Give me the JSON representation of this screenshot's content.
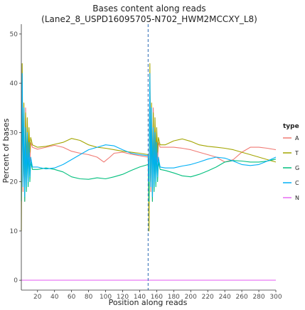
{
  "chart_data": {
    "type": "line",
    "title": "Bases content along reads",
    "subtitle": "(Lane2_8_USPD16095705-N702_HWM2MCCXY_L8)",
    "xlabel": "Position along reads",
    "ylabel": "Percent of bases",
    "xlim": [
      1,
      300
    ],
    "ylim": [
      -2,
      52
    ],
    "xticks": [
      20,
      40,
      60,
      80,
      100,
      120,
      140,
      160,
      180,
      200,
      220,
      240,
      260,
      280,
      300
    ],
    "yticks": [
      0,
      10,
      20,
      30,
      40,
      50
    ],
    "grid": false,
    "legend": {
      "title": "type",
      "position": "right"
    },
    "vline": {
      "x": 150,
      "color": "#4a7fc0",
      "dashed": true
    },
    "series": [
      {
        "name": "A",
        "color": "#f07a74",
        "points": [
          [
            1,
            22
          ],
          [
            2,
            38
          ],
          [
            3,
            18
          ],
          [
            4,
            33
          ],
          [
            5,
            16
          ],
          [
            6,
            35
          ],
          [
            7,
            20
          ],
          [
            8,
            31
          ],
          [
            9,
            22
          ],
          [
            10,
            30
          ],
          [
            11,
            24
          ],
          [
            12,
            28
          ],
          [
            14,
            27
          ],
          [
            20,
            26.6
          ],
          [
            30,
            27
          ],
          [
            40,
            27.4
          ],
          [
            50,
            27
          ],
          [
            60,
            26.2
          ],
          [
            70,
            25.8
          ],
          [
            80,
            25.5
          ],
          [
            90,
            25
          ],
          [
            98,
            24
          ],
          [
            105,
            25
          ],
          [
            110,
            25.8
          ],
          [
            120,
            26
          ],
          [
            130,
            25.6
          ],
          [
            140,
            25.3
          ],
          [
            150,
            25
          ],
          [
            151,
            22
          ],
          [
            152,
            38
          ],
          [
            153,
            18
          ],
          [
            154,
            33
          ],
          [
            155,
            16
          ],
          [
            156,
            35
          ],
          [
            157,
            20
          ],
          [
            158,
            31
          ],
          [
            159,
            22
          ],
          [
            160,
            30
          ],
          [
            161,
            24
          ],
          [
            162,
            28
          ],
          [
            164,
            27
          ],
          [
            170,
            27
          ],
          [
            180,
            27
          ],
          [
            190,
            26.8
          ],
          [
            200,
            26.5
          ],
          [
            210,
            26
          ],
          [
            220,
            25.5
          ],
          [
            230,
            25
          ],
          [
            240,
            24
          ],
          [
            250,
            24.5
          ],
          [
            260,
            26
          ],
          [
            270,
            27
          ],
          [
            280,
            27
          ],
          [
            290,
            26.8
          ],
          [
            300,
            26.5
          ]
        ]
      },
      {
        "name": "T",
        "color": "#a3a500",
        "points": [
          [
            1,
            10
          ],
          [
            2,
            44
          ],
          [
            3,
            20
          ],
          [
            4,
            36
          ],
          [
            5,
            18
          ],
          [
            6,
            34
          ],
          [
            7,
            22
          ],
          [
            8,
            33
          ],
          [
            9,
            25
          ],
          [
            10,
            31
          ],
          [
            11,
            26
          ],
          [
            12,
            29
          ],
          [
            14,
            27.5
          ],
          [
            20,
            27
          ],
          [
            30,
            27.2
          ],
          [
            40,
            27.6
          ],
          [
            50,
            28
          ],
          [
            60,
            28.8
          ],
          [
            70,
            28.4
          ],
          [
            80,
            27.5
          ],
          [
            90,
            27
          ],
          [
            100,
            26.8
          ],
          [
            110,
            26.5
          ],
          [
            120,
            26.2
          ],
          [
            130,
            26
          ],
          [
            140,
            25.8
          ],
          [
            150,
            25.5
          ],
          [
            151,
            10
          ],
          [
            152,
            44
          ],
          [
            153,
            20
          ],
          [
            154,
            36
          ],
          [
            155,
            18
          ],
          [
            156,
            34
          ],
          [
            157,
            22
          ],
          [
            158,
            33
          ],
          [
            159,
            25
          ],
          [
            160,
            31
          ],
          [
            161,
            26
          ],
          [
            162,
            29
          ],
          [
            164,
            27.5
          ],
          [
            170,
            27.5
          ],
          [
            180,
            28.3
          ],
          [
            190,
            28.7
          ],
          [
            200,
            28.2
          ],
          [
            210,
            27.5
          ],
          [
            220,
            27.2
          ],
          [
            230,
            27
          ],
          [
            240,
            26.8
          ],
          [
            250,
            26.5
          ],
          [
            260,
            26
          ],
          [
            270,
            25.5
          ],
          [
            280,
            25
          ],
          [
            290,
            24.5
          ],
          [
            300,
            24
          ]
        ]
      },
      {
        "name": "G",
        "color": "#00bf7d",
        "points": [
          [
            1,
            16
          ],
          [
            2,
            40
          ],
          [
            3,
            20
          ],
          [
            4,
            32
          ],
          [
            5,
            16
          ],
          [
            6,
            30
          ],
          [
            7,
            18
          ],
          [
            8,
            28
          ],
          [
            9,
            19
          ],
          [
            10,
            27
          ],
          [
            11,
            20
          ],
          [
            12,
            24
          ],
          [
            14,
            22.5
          ],
          [
            20,
            22.5
          ],
          [
            30,
            22.8
          ],
          [
            40,
            22.5
          ],
          [
            50,
            22
          ],
          [
            60,
            21
          ],
          [
            70,
            20.6
          ],
          [
            80,
            20.5
          ],
          [
            90,
            20.8
          ],
          [
            100,
            20.6
          ],
          [
            110,
            21
          ],
          [
            120,
            21.5
          ],
          [
            130,
            22.3
          ],
          [
            140,
            23
          ],
          [
            150,
            23.5
          ],
          [
            151,
            16
          ],
          [
            152,
            40
          ],
          [
            153,
            20
          ],
          [
            154,
            32
          ],
          [
            155,
            16
          ],
          [
            156,
            30
          ],
          [
            157,
            18
          ],
          [
            158,
            28
          ],
          [
            159,
            19
          ],
          [
            160,
            27
          ],
          [
            161,
            20
          ],
          [
            162,
            24
          ],
          [
            164,
            22.5
          ],
          [
            170,
            22.3
          ],
          [
            180,
            21.8
          ],
          [
            190,
            21.2
          ],
          [
            200,
            21
          ],
          [
            210,
            21.5
          ],
          [
            220,
            22.2
          ],
          [
            230,
            23
          ],
          [
            240,
            24
          ],
          [
            250,
            24.3
          ],
          [
            260,
            24.2
          ],
          [
            270,
            24
          ],
          [
            280,
            24
          ],
          [
            290,
            24.2
          ],
          [
            300,
            24.6
          ]
        ]
      },
      {
        "name": "C",
        "color": "#00b0f6",
        "points": [
          [
            1,
            20
          ],
          [
            2,
            42
          ],
          [
            3,
            19
          ],
          [
            4,
            35
          ],
          [
            5,
            17
          ],
          [
            6,
            31
          ],
          [
            7,
            19
          ],
          [
            8,
            30
          ],
          [
            9,
            20
          ],
          [
            10,
            28
          ],
          [
            11,
            21
          ],
          [
            12,
            25
          ],
          [
            14,
            23
          ],
          [
            20,
            23
          ],
          [
            30,
            22.6
          ],
          [
            40,
            22.8
          ],
          [
            50,
            23.5
          ],
          [
            60,
            24.5
          ],
          [
            70,
            25.5
          ],
          [
            80,
            26.5
          ],
          [
            90,
            27
          ],
          [
            100,
            27.5
          ],
          [
            110,
            27.3
          ],
          [
            120,
            26.5
          ],
          [
            130,
            25.8
          ],
          [
            140,
            25.5
          ],
          [
            150,
            25.3
          ],
          [
            151,
            20
          ],
          [
            152,
            42
          ],
          [
            153,
            19
          ],
          [
            154,
            35
          ],
          [
            155,
            17
          ],
          [
            156,
            31
          ],
          [
            157,
            19
          ],
          [
            158,
            30
          ],
          [
            159,
            20
          ],
          [
            160,
            28
          ],
          [
            161,
            21
          ],
          [
            162,
            25
          ],
          [
            164,
            23
          ],
          [
            170,
            22.8
          ],
          [
            180,
            22.8
          ],
          [
            190,
            23.2
          ],
          [
            200,
            23.5
          ],
          [
            210,
            24
          ],
          [
            220,
            24.6
          ],
          [
            230,
            25
          ],
          [
            240,
            24.8
          ],
          [
            250,
            24.2
          ],
          [
            260,
            23.5
          ],
          [
            270,
            23.3
          ],
          [
            280,
            23.5
          ],
          [
            290,
            24.2
          ],
          [
            300,
            25
          ]
        ]
      },
      {
        "name": "N",
        "color": "#e76bf3",
        "points": [
          [
            1,
            0
          ],
          [
            300,
            0
          ]
        ]
      }
    ]
  }
}
